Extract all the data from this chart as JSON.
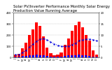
{
  "title": "Solar PV/Inverter Performance Monthly Solar Energy Production Value Running Average",
  "bar_values": [
    25,
    30,
    80,
    130,
    200,
    250,
    310,
    280,
    190,
    90,
    35,
    20,
    28,
    45,
    110,
    170,
    240,
    290,
    320,
    270,
    200,
    150,
    60,
    25
  ],
  "running_avg": [
    25,
    27,
    45,
    65,
    93,
    119,
    146,
    163,
    166,
    156,
    138,
    120,
    108,
    99,
    97,
    102,
    113,
    128,
    147,
    158,
    163,
    164,
    158,
    149
  ],
  "small_vals": [
    8,
    7,
    12,
    15,
    18,
    20,
    22,
    20,
    16,
    11,
    7,
    6,
    7,
    8,
    13,
    16,
    19,
    21,
    23,
    21,
    17,
    13,
    9,
    7
  ],
  "bar_color": "#ff0000",
  "small_bar_color": "#0000ff",
  "line_color": "#0000dd",
  "ylim": [
    0,
    400
  ],
  "y2lim": [
    0,
    20
  ],
  "yticks_left": [
    0,
    100,
    200,
    300,
    400
  ],
  "yticks_right": [
    0,
    5,
    10,
    15,
    20
  ],
  "bg_color": "#ffffff",
  "grid_color": "#bbbbbb",
  "title_fontsize": 3.8,
  "tick_fontsize": 2.8,
  "label_fontsize": 2.8
}
